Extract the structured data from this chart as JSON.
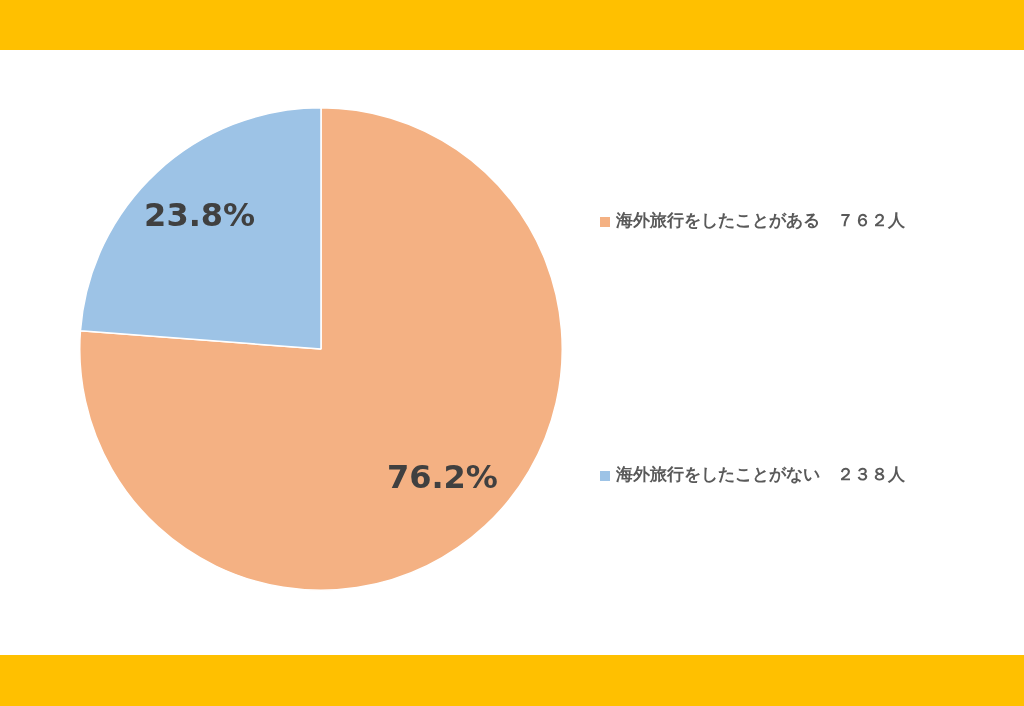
{
  "chart_data": {
    "type": "pie",
    "categories": [
      "海外旅行をしたことがある　７６２人",
      "海外旅行をしたことがない　２３８人"
    ],
    "values": [
      76.2,
      23.8
    ],
    "colors": [
      "#f4b183",
      "#9dc3e6"
    ],
    "value_labels": [
      "76.2%",
      "23.8%"
    ],
    "legend": "right"
  }
}
